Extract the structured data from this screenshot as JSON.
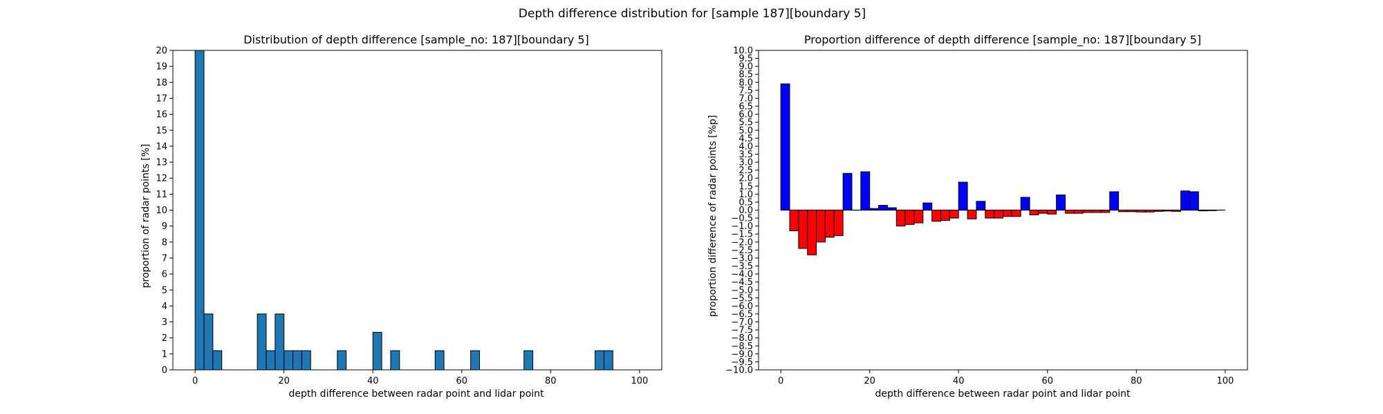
{
  "figure": {
    "suptitle": "Depth difference distribution for [sample 187][boundary 5]",
    "colors": {
      "left_bar": "#1f77b4",
      "positive": "#0000ff",
      "negative": "#ff0000",
      "edge": "#000000",
      "zero_line": "#000000"
    }
  },
  "chart_data": [
    {
      "type": "bar",
      "title": "Distribution of depth difference [sample_no: 187][boundary 5]",
      "xlabel": "depth difference between radar point and lidar point",
      "ylabel": "proportion of radar points [%]",
      "xlim": [
        -5,
        105
      ],
      "ylim": [
        0,
        20
      ],
      "xticks": [
        0,
        20,
        40,
        60,
        80,
        100
      ],
      "yticks": [
        0,
        1,
        2,
        3,
        4,
        5,
        6,
        7,
        8,
        9,
        10,
        11,
        12,
        13,
        14,
        15,
        16,
        17,
        18,
        19,
        20
      ],
      "bin_width": 2,
      "bin_start": 0,
      "values": [
        20.0,
        3.5,
        1.2,
        0,
        0,
        0,
        0,
        3.5,
        1.2,
        3.5,
        1.2,
        1.2,
        1.2,
        0,
        0,
        0,
        1.2,
        0,
        0,
        0,
        2.35,
        0,
        1.2,
        0,
        0,
        0,
        0,
        1.2,
        0,
        0,
        0,
        1.2,
        0,
        0,
        0,
        0,
        0,
        1.2,
        0,
        0,
        0,
        0,
        0,
        0,
        0,
        1.2,
        1.2,
        0,
        0,
        0
      ],
      "grid": false,
      "legend": "none"
    },
    {
      "type": "bar",
      "title": "Proportion difference of depth difference [sample_no: 187][boundary 5]",
      "xlabel": "depth difference between radar point and lidar point",
      "ylabel": "proportion difference of radar points [%p]",
      "xlim": [
        -5,
        105
      ],
      "ylim": [
        -10,
        10
      ],
      "xticks": [
        0,
        20,
        40,
        60,
        80,
        100
      ],
      "ytick_step": 0.5,
      "bin_width": 2,
      "bin_start": 0,
      "values": [
        7.9,
        -1.3,
        -2.4,
        -2.8,
        -2.0,
        -1.7,
        -1.6,
        2.3,
        0,
        2.4,
        0.1,
        0.3,
        0.15,
        -1.0,
        -0.9,
        -0.8,
        0.45,
        -0.7,
        -0.65,
        -0.5,
        1.75,
        -0.55,
        0.55,
        -0.5,
        -0.5,
        -0.4,
        -0.4,
        0.8,
        -0.3,
        -0.2,
        -0.25,
        0.95,
        -0.2,
        -0.2,
        -0.15,
        -0.15,
        -0.15,
        1.15,
        -0.1,
        -0.1,
        -0.12,
        -0.12,
        -0.08,
        -0.06,
        -0.08,
        1.2,
        1.15,
        -0.05,
        -0.03,
        0
      ],
      "grid": false,
      "legend": "none"
    }
  ]
}
